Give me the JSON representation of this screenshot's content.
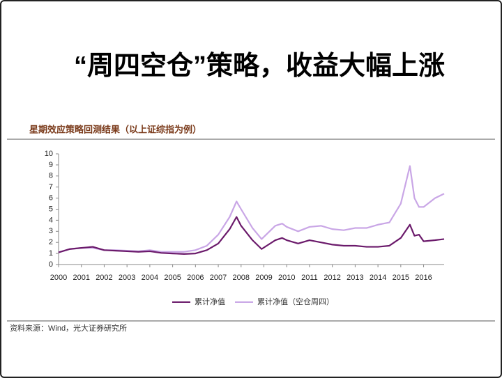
{
  "title": "“周四空仓”策略，收益大幅上涨",
  "chart_data": {
    "type": "line",
    "title": "星期效应策略回测结果（以上证综指为例）",
    "source": "资料来源：Wind，光大证券研究所",
    "x": [
      2000,
      2000.5,
      2001,
      2001.5,
      2002,
      2002.5,
      2003,
      2003.5,
      2004,
      2004.5,
      2005,
      2005.5,
      2006,
      2006.5,
      2007,
      2007.5,
      2007.8,
      2008,
      2008.5,
      2008.9,
      2009.5,
      2009.8,
      2010,
      2010.5,
      2011,
      2011.5,
      2012,
      2012.5,
      2013,
      2013.5,
      2014,
      2014.5,
      2015,
      2015.4,
      2015.6,
      2015.8,
      2016,
      2016.5,
      2016.9
    ],
    "series": [
      {
        "name": "累计净值",
        "color": "#6b1a6b",
        "values": [
          1.1,
          1.4,
          1.5,
          1.6,
          1.3,
          1.25,
          1.2,
          1.15,
          1.2,
          1.05,
          1.0,
          0.95,
          1.0,
          1.3,
          1.9,
          3.2,
          4.3,
          3.5,
          2.2,
          1.4,
          2.2,
          2.4,
          2.2,
          1.9,
          2.2,
          2.0,
          1.8,
          1.7,
          1.7,
          1.6,
          1.6,
          1.7,
          2.4,
          3.6,
          2.6,
          2.7,
          2.1,
          2.2,
          2.3
        ]
      },
      {
        "name": "累计净值（空仓周四）",
        "color": "#c9a6e6",
        "values": [
          1.1,
          1.4,
          1.5,
          1.5,
          1.3,
          1.3,
          1.25,
          1.2,
          1.3,
          1.15,
          1.15,
          1.15,
          1.3,
          1.7,
          2.7,
          4.3,
          5.7,
          5.0,
          3.3,
          2.3,
          3.5,
          3.7,
          3.4,
          3.0,
          3.4,
          3.5,
          3.2,
          3.1,
          3.3,
          3.3,
          3.6,
          3.8,
          5.5,
          8.9,
          6.0,
          5.2,
          5.2,
          6.0,
          6.4
        ]
      }
    ],
    "xlim": [
      2000,
      2016.9
    ],
    "xticks": [
      2000,
      2001,
      2002,
      2003,
      2004,
      2005,
      2006,
      2007,
      2008,
      2009,
      2010,
      2011,
      2012,
      2013,
      2014,
      2015,
      2016
    ],
    "ylim": [
      0,
      10
    ],
    "yticks": [
      0,
      1,
      2,
      3,
      4,
      5,
      6,
      7,
      8,
      9,
      10
    ],
    "legend": "bottom"
  }
}
